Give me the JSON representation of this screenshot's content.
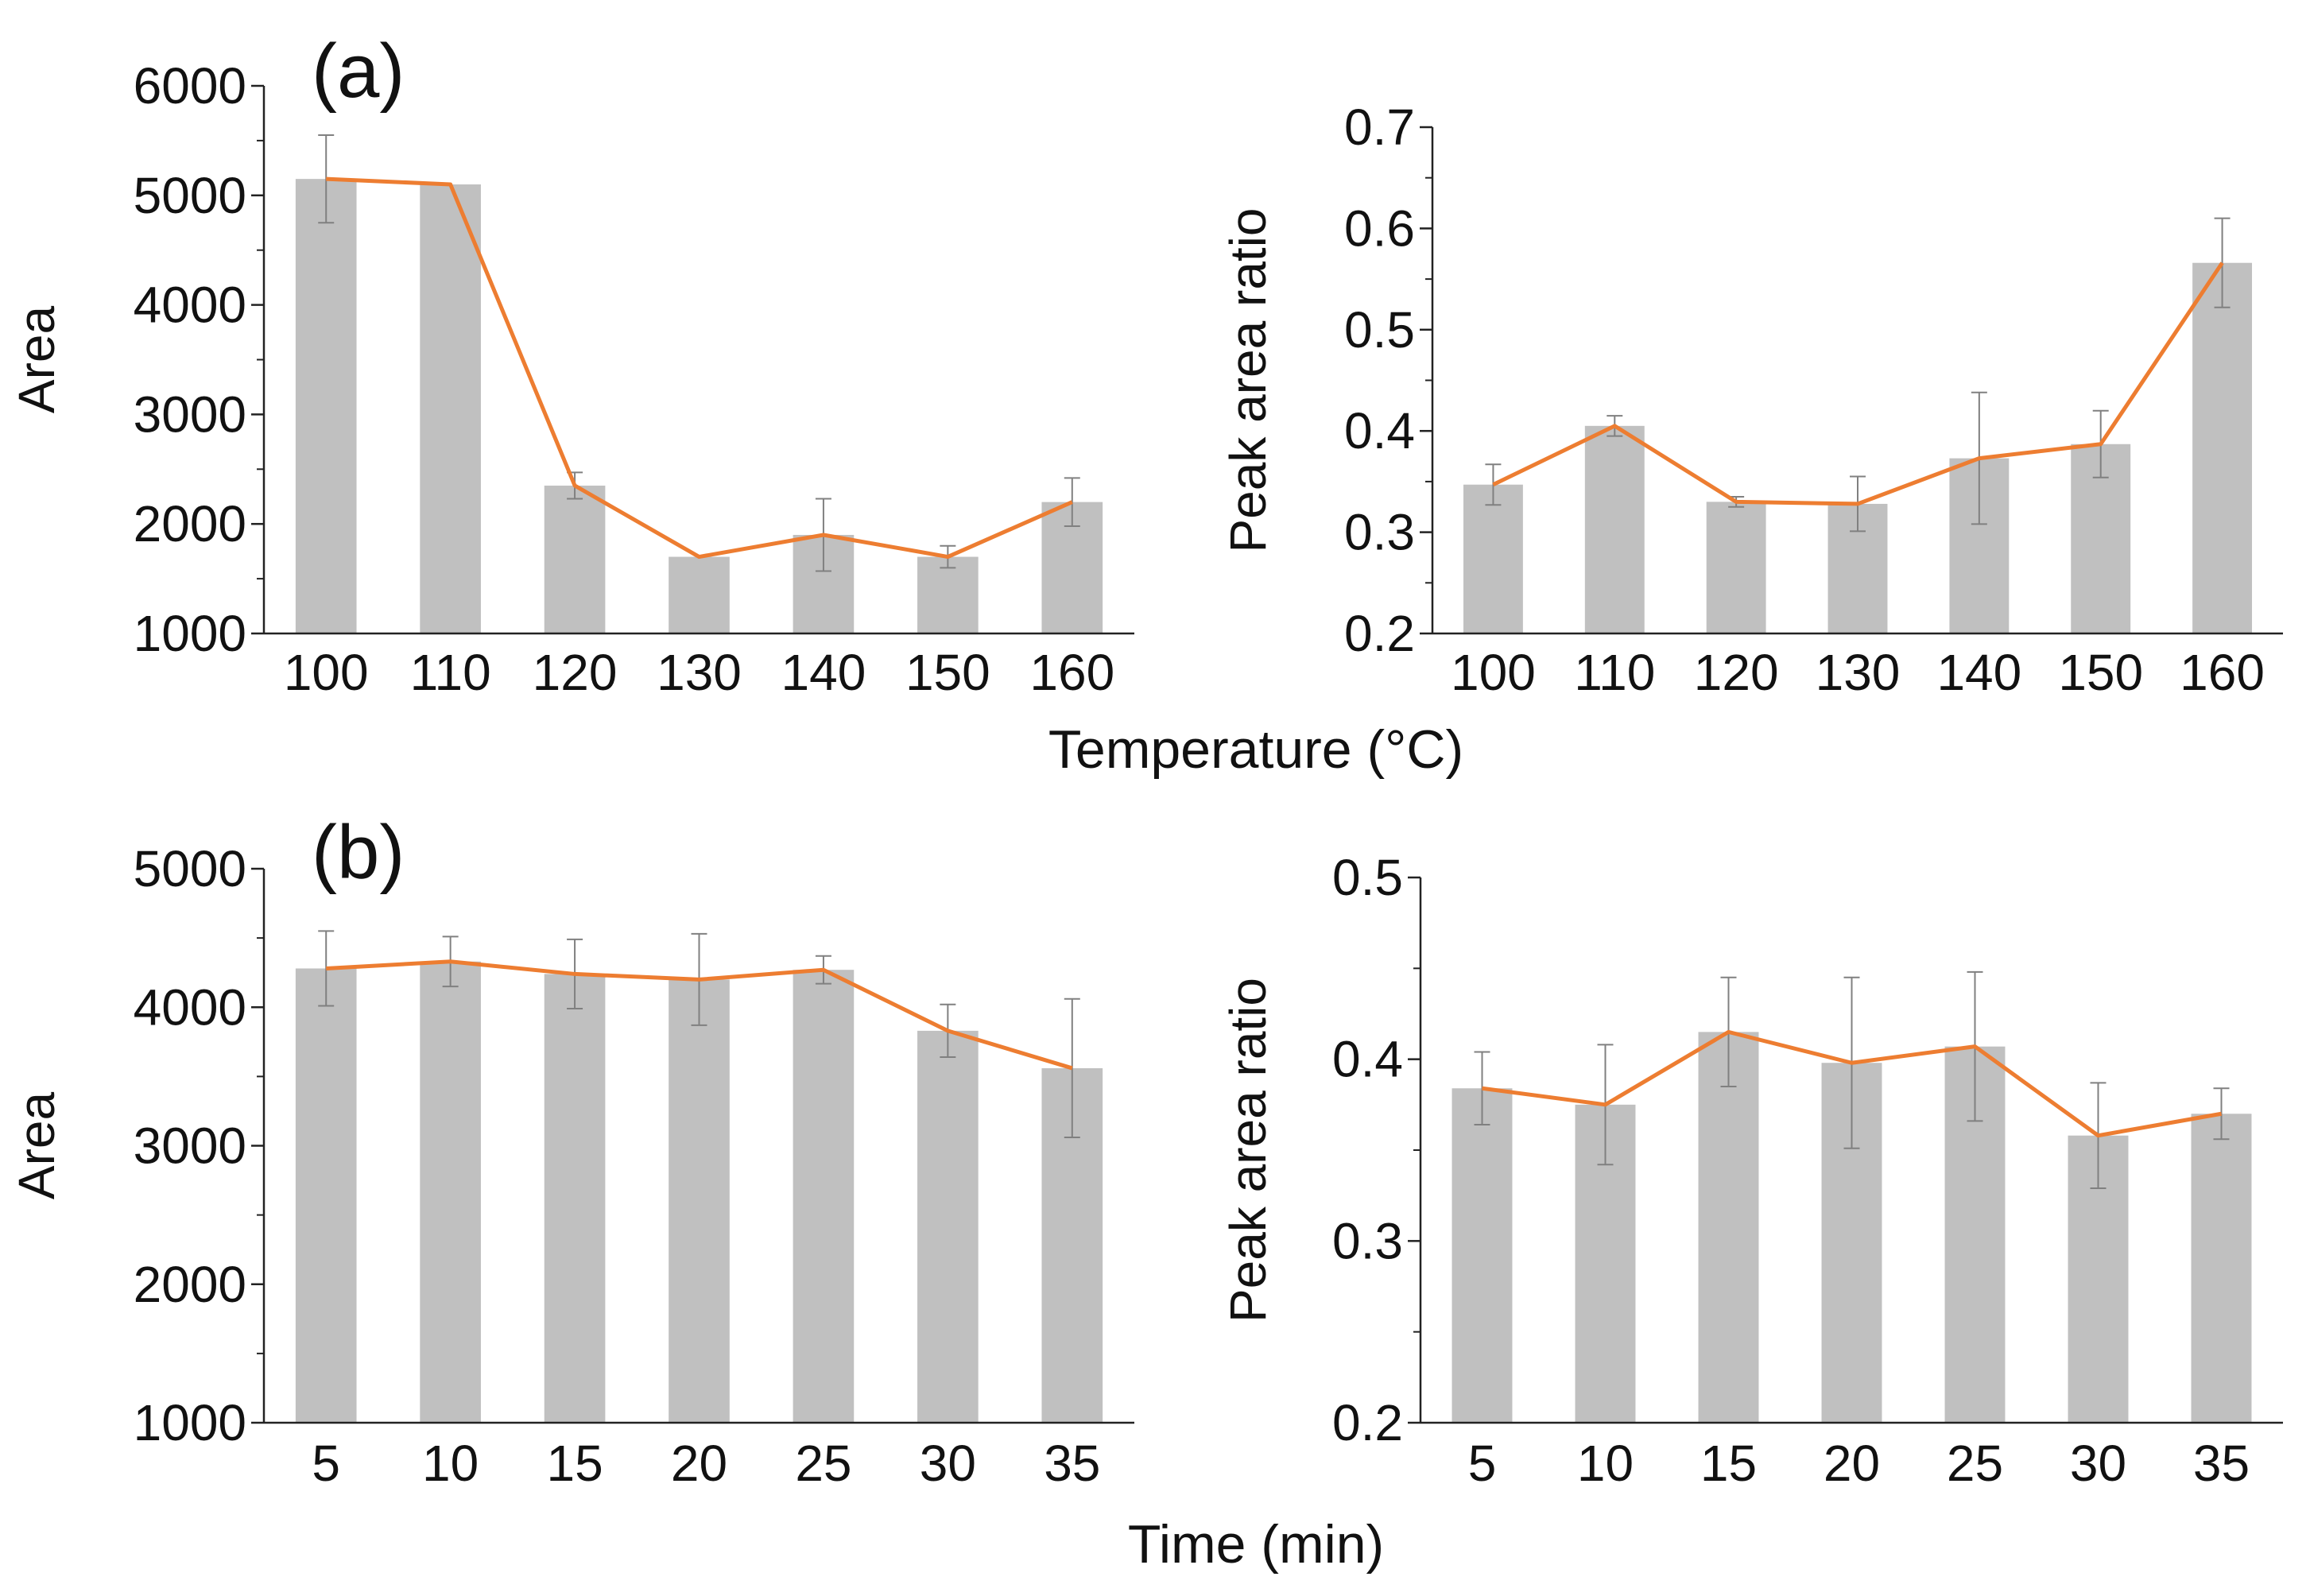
{
  "chart_data": [
    {
      "id": "a-left",
      "type": "bar",
      "title": "",
      "categories": [
        "100",
        "110",
        "120",
        "130",
        "140",
        "150",
        "160"
      ],
      "series": [
        {
          "name": "Area",
          "values": [
            5150,
            5100,
            2350,
            1700,
            1900,
            1700,
            2200
          ],
          "errors": [
            400,
            0,
            120,
            0,
            330,
            100,
            220
          ]
        }
      ],
      "line_values": [
        5150,
        5100,
        2350,
        1700,
        1900,
        1700,
        2200
      ],
      "xlabel": "",
      "ylabel": "Area",
      "ylim": [
        1000,
        6000
      ],
      "yticks": [
        1000,
        2000,
        3000,
        4000,
        5000,
        6000
      ],
      "ytick_labels": [
        "1000",
        "2000",
        "3000",
        "4000",
        "5000",
        "6000"
      ],
      "colors": {
        "bar": "#c0c0c0",
        "line": "#ed7d31",
        "error": "#808080"
      }
    },
    {
      "id": "a-right",
      "type": "bar",
      "title": "",
      "categories": [
        "100",
        "110",
        "120",
        "130",
        "140",
        "150",
        "160"
      ],
      "series": [
        {
          "name": "Peak area ratio",
          "values": [
            0.347,
            0.405,
            0.33,
            0.328,
            0.373,
            0.387,
            0.566
          ],
          "errors": [
            0.02,
            0.01,
            0.005,
            0.027,
            0.065,
            0.033,
            0.044
          ]
        }
      ],
      "line_values": [
        0.347,
        0.405,
        0.33,
        0.328,
        0.373,
        0.387,
        0.566
      ],
      "xlabel": "",
      "ylabel": "Peak area ratio",
      "ylim": [
        0.2,
        0.7
      ],
      "yticks": [
        0.2,
        0.3,
        0.4,
        0.5,
        0.6,
        0.7
      ],
      "ytick_labels": [
        "0.2",
        "0.3",
        "0.4",
        "0.5",
        "0.6",
        "0.7"
      ],
      "colors": {
        "bar": "#c0c0c0",
        "line": "#ed7d31",
        "error": "#808080"
      }
    },
    {
      "id": "b-left",
      "type": "bar",
      "title": "",
      "categories": [
        "5",
        "10",
        "15",
        "20",
        "25",
        "30",
        "35"
      ],
      "series": [
        {
          "name": "Area",
          "values": [
            4280,
            4330,
            4240,
            4200,
            4270,
            3830,
            3560
          ],
          "errors": [
            270,
            180,
            250,
            330,
            100,
            190,
            500
          ]
        }
      ],
      "line_values": [
        4280,
        4330,
        4240,
        4200,
        4270,
        3830,
        3560
      ],
      "xlabel": "",
      "ylabel": "Area",
      "ylim": [
        1000,
        5000
      ],
      "yticks": [
        1000,
        2000,
        3000,
        4000,
        5000
      ],
      "ytick_labels": [
        "1000",
        "2000",
        "3000",
        "4000",
        "5000"
      ],
      "colors": {
        "bar": "#c0c0c0",
        "line": "#ed7d31",
        "error": "#808080"
      }
    },
    {
      "id": "b-right",
      "type": "bar",
      "title": "",
      "categories": [
        "5",
        "10",
        "15",
        "20",
        "25",
        "30",
        "35"
      ],
      "series": [
        {
          "name": "Peak area ratio",
          "values": [
            0.384,
            0.375,
            0.415,
            0.398,
            0.407,
            0.358,
            0.37
          ],
          "errors": [
            0.02,
            0.033,
            0.03,
            0.047,
            0.041,
            0.029,
            0.014
          ]
        }
      ],
      "line_values": [
        0.384,
        0.375,
        0.415,
        0.398,
        0.407,
        0.358,
        0.37
      ],
      "xlabel": "",
      "ylabel": "Peak area ratio",
      "ylim": [
        0.2,
        0.5
      ],
      "yticks": [
        0.2,
        0.3,
        0.4,
        0.5
      ],
      "ytick_labels": [
        "0.2",
        "0.3",
        "0.4",
        "0.5"
      ],
      "colors": {
        "bar": "#c0c0c0",
        "line": "#ed7d31",
        "error": "#808080"
      }
    }
  ],
  "labels": {
    "panel_a": "(a)",
    "panel_b": "(b)",
    "temperature_axis": "Temperature (°C)",
    "time_axis": "Time (min)"
  }
}
